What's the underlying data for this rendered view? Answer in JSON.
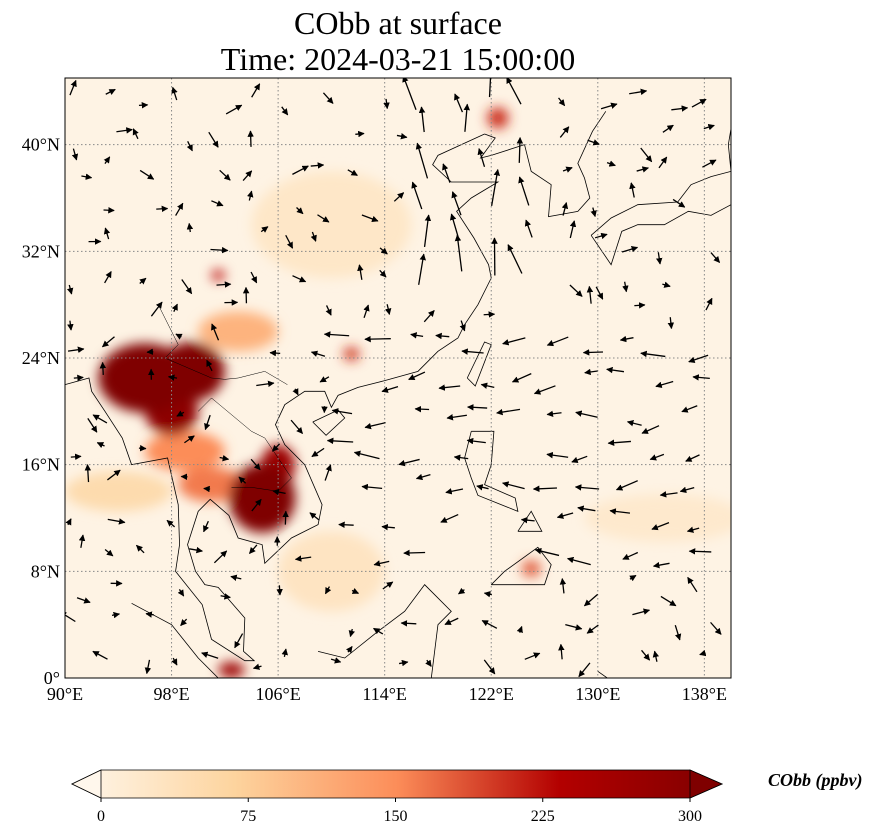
{
  "title": {
    "line1": "CObb at surface",
    "line2": "Time: 2024-03-21 15:00:00"
  },
  "map": {
    "lon_range": [
      90,
      140
    ],
    "lat_range": [
      0,
      45
    ],
    "lon_ticks": [
      {
        "v": 90,
        "label": "90°E"
      },
      {
        "v": 98,
        "label": "98°E"
      },
      {
        "v": 106,
        "label": "106°E"
      },
      {
        "v": 114,
        "label": "114°E"
      },
      {
        "v": 122,
        "label": "122°E"
      },
      {
        "v": 130,
        "label": "130°E"
      },
      {
        "v": 138,
        "label": "138°E"
      }
    ],
    "lat_ticks": [
      {
        "v": 0,
        "label": "0°"
      },
      {
        "v": 8,
        "label": "8°N"
      },
      {
        "v": 16,
        "label": "16°N"
      },
      {
        "v": 24,
        "label": "24°N"
      },
      {
        "v": 32,
        "label": "32°N"
      },
      {
        "v": 40,
        "label": "40°N"
      }
    ],
    "hotspots": [
      {
        "lon": 96,
        "lat": 22.5,
        "rx": 3.5,
        "ry": 2.6,
        "value": 300
      },
      {
        "lon": 99.5,
        "lat": 23,
        "rx": 2.5,
        "ry": 2.2,
        "value": 300
      },
      {
        "lon": 98,
        "lat": 20,
        "rx": 2,
        "ry": 1.8,
        "value": 280
      },
      {
        "lon": 104.8,
        "lat": 13.5,
        "rx": 2.5,
        "ry": 2.6,
        "value": 300
      },
      {
        "lon": 106,
        "lat": 16,
        "rx": 1.3,
        "ry": 1.5,
        "value": 260
      },
      {
        "lon": 101,
        "lat": 14.5,
        "rx": 2.5,
        "ry": 1.3,
        "value": 160
      },
      {
        "lon": 99,
        "lat": 17,
        "rx": 3,
        "ry": 1.5,
        "value": 150
      },
      {
        "lon": 103,
        "lat": 26,
        "rx": 3,
        "ry": 1.5,
        "value": 110
      },
      {
        "lon": 122.5,
        "lat": 42,
        "rx": 0.8,
        "ry": 0.8,
        "value": 200
      },
      {
        "lon": 101.5,
        "lat": 30.2,
        "rx": 0.5,
        "ry": 0.4,
        "value": 220
      },
      {
        "lon": 111.5,
        "lat": 24.3,
        "rx": 0.6,
        "ry": 0.5,
        "value": 200
      },
      {
        "lon": 102.5,
        "lat": 0.6,
        "rx": 1,
        "ry": 0.6,
        "value": 260
      },
      {
        "lon": 125,
        "lat": 8.2,
        "rx": 0.7,
        "ry": 0.6,
        "value": 180
      },
      {
        "lon": 110,
        "lat": 34,
        "rx": 6,
        "ry": 4,
        "value": 35
      },
      {
        "lon": 94,
        "lat": 14,
        "rx": 4,
        "ry": 1.5,
        "value": 60
      },
      {
        "lon": 110,
        "lat": 8,
        "rx": 4,
        "ry": 3,
        "value": 40
      },
      {
        "lon": 135,
        "lat": 12,
        "rx": 6,
        "ry": 1.8,
        "value": 30
      }
    ]
  },
  "colorbar": {
    "label": "CObb (ppbv)",
    "min": 0,
    "max": 300,
    "ticks": [
      {
        "v": 0,
        "label": "0"
      },
      {
        "v": 75,
        "label": "75"
      },
      {
        "v": 150,
        "label": "150"
      },
      {
        "v": 225,
        "label": "225"
      },
      {
        "v": 300,
        "label": "300"
      }
    ],
    "colors": [
      "#fff7ec",
      "#fdd49e",
      "#fc8d59",
      "#b30000",
      "#7f0000"
    ]
  }
}
